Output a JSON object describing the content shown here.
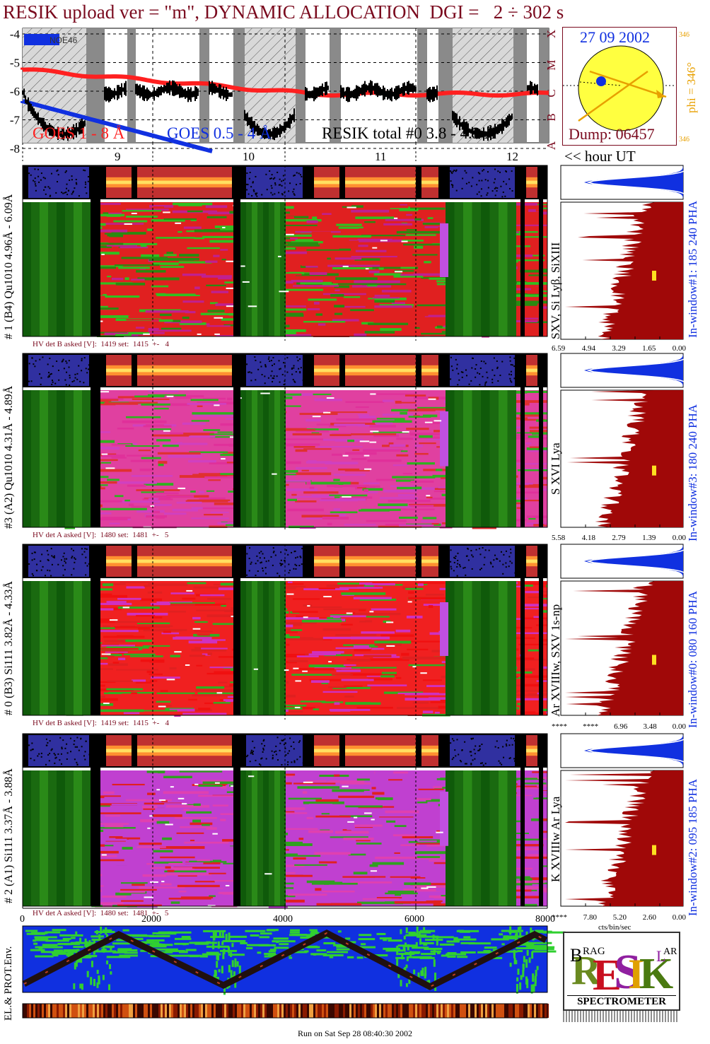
{
  "header": {
    "title": "RESIK upload ver = \"m\", DYNAMIC ALLOCATION  DGI =   2 ÷ 302 s"
  },
  "goes_panel": {
    "y_ticks": [
      "-4",
      "-5",
      "-6",
      "-7",
      "-8"
    ],
    "class_letters": [
      "X",
      "M",
      "C",
      "B",
      "A"
    ],
    "legend_box": "NOE46",
    "labels": {
      "goes_long": "GOES 1 - 8 Å",
      "goes_short": "GOES 0.5 - 4 Å",
      "resik_total": "RESIK total #0  3.8 - 4.3 Å"
    },
    "colors": {
      "goes_long": "#ff2020",
      "goes_short": "#1030e0",
      "resik": "#000000",
      "shade": "#8a8a8a"
    }
  },
  "orbit": {
    "date": "27 09 2002",
    "phi_label": "phi = 346°",
    "phi_small": "346",
    "dump": "Dump: 06457"
  },
  "time_axis": {
    "hours": [
      "9",
      "10",
      "11",
      "12"
    ],
    "hour_caption": "<< hour UT"
  },
  "detectors": [
    {
      "label": "# 1 (B4) Qu1010 4.96Å - 6.09Å",
      "lines": "SXV, Si Lyβ, SiXIII",
      "window": "In-window#1:  185 240 PHA",
      "hv": "HV det B asked [V]:  1419 set:  1415  +-   4",
      "x_ticks": [
        "6.59",
        "4.94",
        "3.29",
        "1.65",
        "0.00"
      ]
    },
    {
      "label": "#3 (A2) Qu1010  4.31Å - 4.89Å",
      "lines": "S XVI Lya",
      "window": "In-window#3:  180 240 PHA",
      "hv": "HV det A asked [V]:  1480 set:  1481  +-   5",
      "x_ticks": [
        "5.58",
        "4.18",
        "2.79",
        "1.39",
        "0.00"
      ]
    },
    {
      "label": "# 0 (B3) Si111  3.82Å - 4.33Å",
      "lines": "Ar XVIIIw,  SXV 1s-np",
      "window": "In-window#0:  080 160 PHA",
      "hv": "HV det B asked [V]:  1419 set:  1415  +-   4",
      "x_ticks": [
        "****",
        "****",
        "6.96",
        "3.48",
        "0.00"
      ]
    },
    {
      "label": "# 2 (A1) Si111  3.37Å - 3.88Å",
      "lines": "K XVIIIw  Ar Lya",
      "window": "In-window#2:  095 185 PHA",
      "hv": "HV det A asked [V]:  1480 set:  1481  +-   5",
      "x_ticks": [
        "****",
        "7.80",
        "5.20",
        "2.60",
        "0.00"
      ]
    }
  ],
  "bottom_axis": {
    "ticks": [
      "0",
      "2000",
      "4000",
      "6000",
      "8000"
    ],
    "unit": "cts/bin/sec"
  },
  "env_panel": {
    "label": "EL.& PROT.Env."
  },
  "logo": {
    "name": "RESIK",
    "subtitle": "SPECTROMETER",
    "letters": "BRAG SOLAR"
  },
  "footer": {
    "run_on": "Run on Sat Sep 28 08:40:30 2002"
  }
}
